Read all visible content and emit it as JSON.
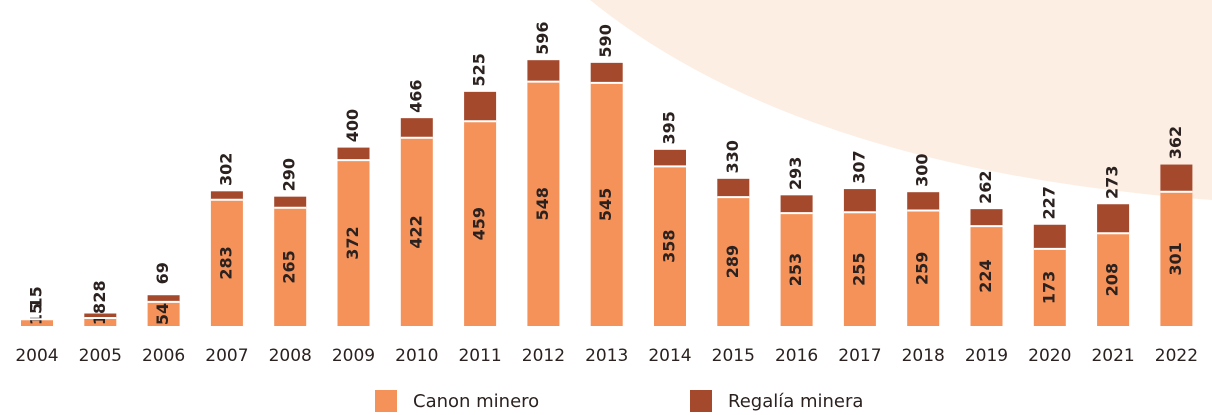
{
  "chart_data": {
    "type": "stacked-bar",
    "categories": [
      "2004",
      "2005",
      "2006",
      "2007",
      "2008",
      "2009",
      "2010",
      "2011",
      "2012",
      "2013",
      "2014",
      "2015",
      "2016",
      "2017",
      "2018",
      "2019",
      "2020",
      "2021",
      "2022"
    ],
    "series": [
      {
        "name": "Canon minero",
        "color": "#f4925a",
        "values": [
          15,
          18,
          54,
          283,
          265,
          372,
          422,
          459,
          548,
          545,
          358,
          289,
          253,
          255,
          259,
          224,
          173,
          208,
          301
        ]
      },
      {
        "name": "Regalía minera",
        "color": "#a5492d",
        "values": [
          0,
          10,
          15,
          19,
          25,
          28,
          44,
          66,
          48,
          45,
          37,
          41,
          40,
          52,
          41,
          38,
          54,
          65,
          61
        ]
      }
    ],
    "totals": [
      15,
      28,
      69,
      302,
      290,
      400,
      466,
      525,
      596,
      590,
      395,
      330,
      293,
      307,
      300,
      262,
      227,
      273,
      362
    ]
  }
}
